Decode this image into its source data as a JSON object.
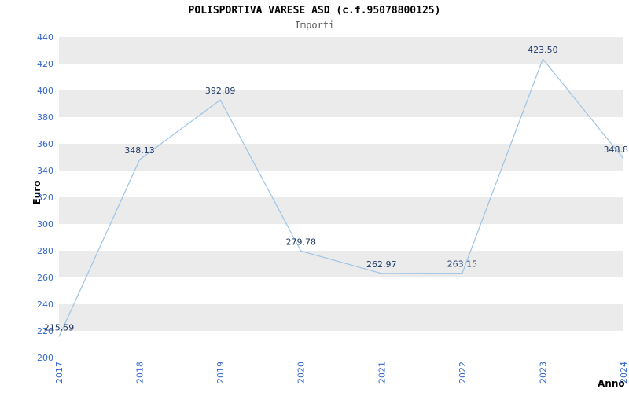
{
  "header": {
    "title": "POLISPORTIVA VARESE ASD (c.f.95078800125)",
    "subtitle": "Importi"
  },
  "axes": {
    "y_label": "Euro",
    "x_label": "Anno"
  },
  "chart_data": {
    "type": "line",
    "title": "POLISPORTIVA VARESE ASD (c.f.95078800125)",
    "subtitle": "Importi",
    "xlabel": "Anno",
    "ylabel": "Euro",
    "x": [
      "2017",
      "2018",
      "2019",
      "2020",
      "2021",
      "2022",
      "2023",
      "2024"
    ],
    "series": [
      {
        "name": "Importi",
        "values": [
          215.59,
          348.13,
          392.89,
          279.78,
          262.97,
          263.15,
          423.5,
          348.8
        ]
      }
    ],
    "point_labels": [
      "215.59",
      "348.13",
      "392.89",
      "279.78",
      "262.97",
      "263.15",
      "423.50",
      "348.8"
    ],
    "ylim": [
      200,
      440
    ],
    "ytick_step": 20,
    "grid": "striped-bands",
    "legend": "none",
    "colors": {
      "line": "#9dc3e6",
      "band": "#ebebeb",
      "band_alt": "#ffffff",
      "tick_label": "#3366cc",
      "point_label": "#1f3864",
      "title": "#000000",
      "subtitle": "#595959"
    }
  }
}
